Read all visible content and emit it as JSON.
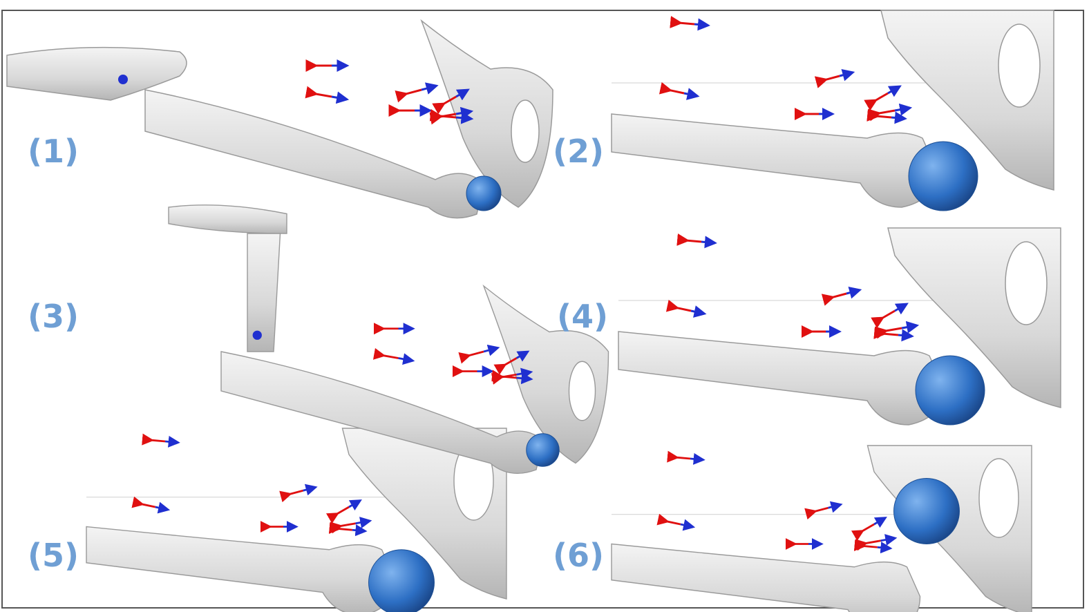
{
  "panels": [
    {
      "label": "(1)"
    },
    {
      "label": "(2)"
    },
    {
      "label": "(3)"
    },
    {
      "label": "(4)"
    },
    {
      "label": "(5)"
    },
    {
      "label": "(6)"
    }
  ]
}
